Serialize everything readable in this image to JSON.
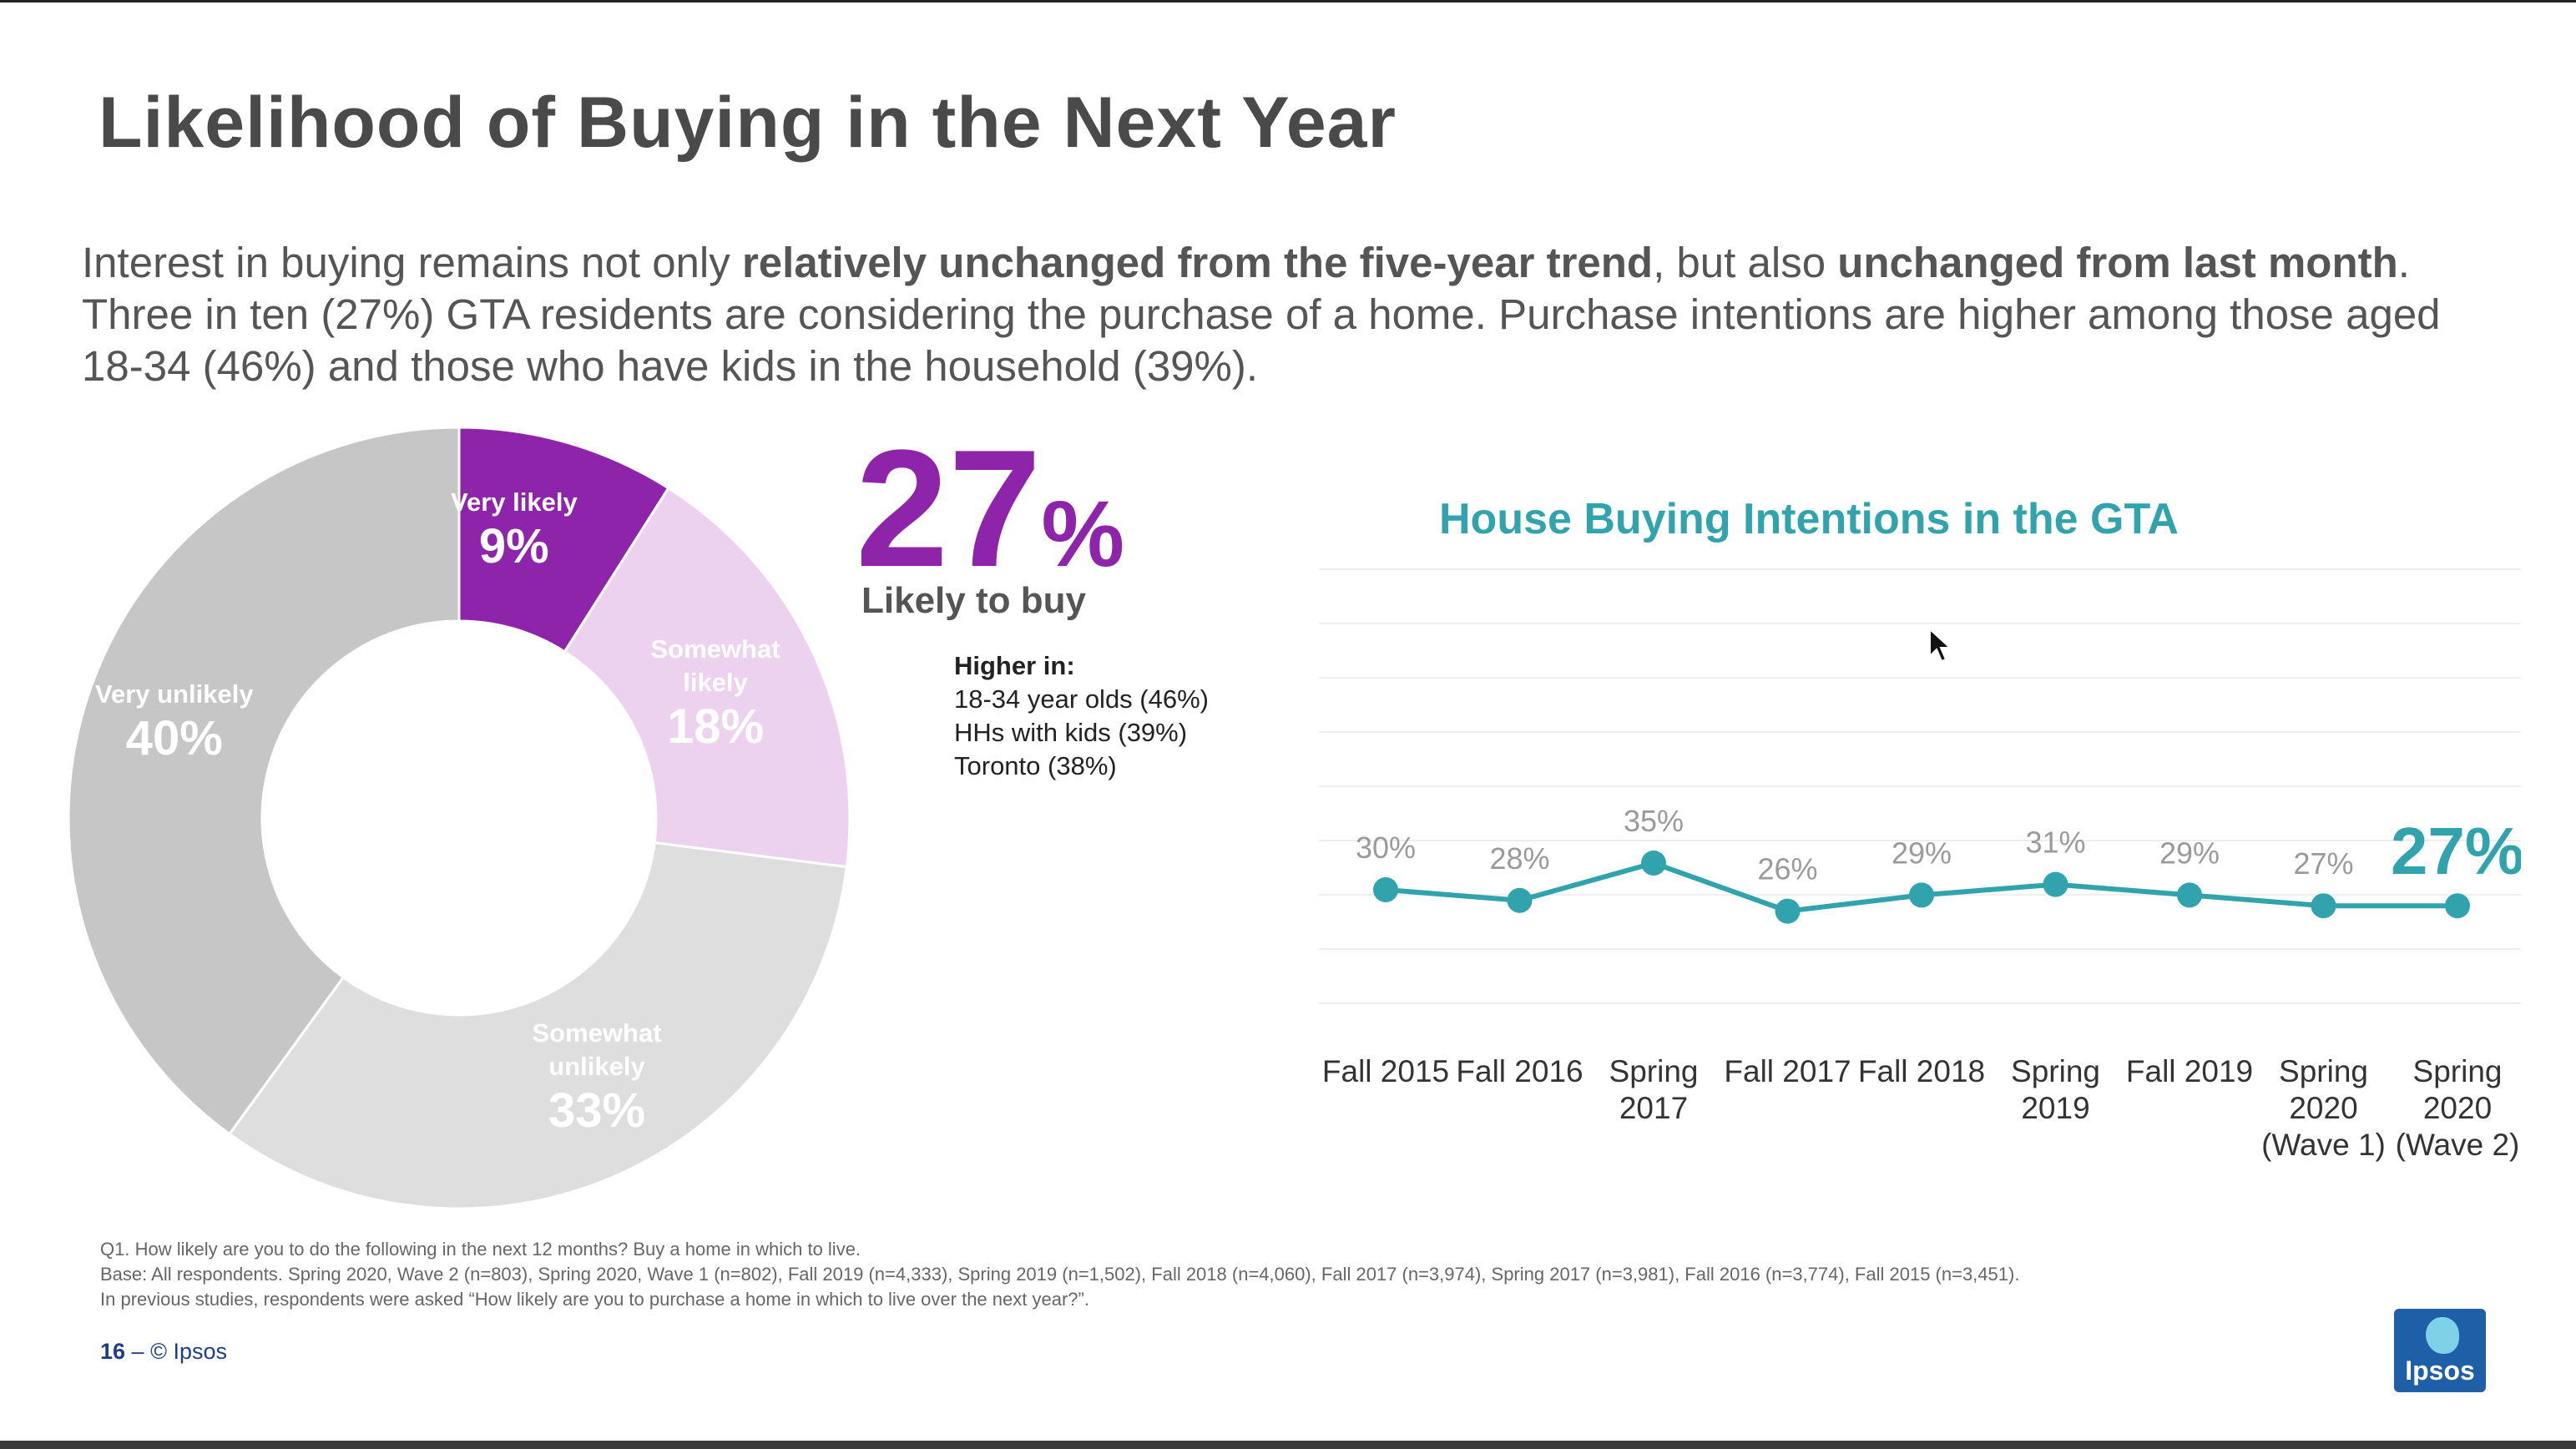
{
  "slide": {
    "title": "Likelihood of Buying in the Next Year",
    "intro": {
      "p1": "Interest in buying remains not only ",
      "b1": "relatively unchanged from the five-year trend",
      "p2": ", but also ",
      "b2": "unchanged from last month",
      "p3": ". Three in ten (27%) GTA residents are considering the purchase of a home. Purchase intentions are higher among those aged 18-34 (46%) and those who have kids in the household (39%)."
    },
    "callout": {
      "big_number": "27",
      "big_symbol": "%",
      "label": "Likely to buy",
      "higher_heading": "Higher in:",
      "higher_items": [
        "18-34 year olds (46%)",
        "HHs with kids (39%)",
        "Toronto (38%)"
      ]
    },
    "footnotes": {
      "q1": "Q1. How likely are you to do the following in the next 12 months?  Buy a home in which to live.",
      "base": "Base: All respondents. Spring 2020, Wave 2 (n=803), Spring 2020, Wave 1 (n=802), Fall 2019 (n=4,333), Spring 2019 (n=1,502), Fall 2018 (n=4,060), Fall 2017 (n=3,974), Spring 2017 (n=3,981), Fall 2016 (n=3,774), Fall 2015 (n=3,451).",
      "prev": "In previous studies, respondents were asked “How likely are you to purchase a home in which to live over the next year?”."
    },
    "page_number": "16",
    "page_sep": " – ",
    "copyright": "© Ipsos",
    "logo_text": "Ipsos"
  },
  "colors": {
    "title": "#4a4a4a",
    "accent_purple": "#8e24aa",
    "teal": "#31a3ad",
    "page_number": "#1f3c88"
  },
  "chart_data": [
    {
      "type": "pie",
      "donut": true,
      "slices": [
        {
          "label": "Very likely",
          "value": 9,
          "display": "9%",
          "color": "#8e24aa"
        },
        {
          "label": "Somewhat likely",
          "value": 18,
          "display": "18%",
          "color": "#ecd2ef"
        },
        {
          "label": "Somewhat unlikely",
          "value": 33,
          "display": "33%",
          "color": "#dedede"
        },
        {
          "label": "Very unlikely",
          "value": 40,
          "display": "40%",
          "color": "#c6c6c6"
        }
      ]
    },
    {
      "type": "line",
      "title": "House Buying Intentions in the GTA",
      "categories": [
        "Fall 2015",
        "Fall 2016",
        "Spring 2017",
        "Fall 2017",
        "Fall 2018",
        "Spring 2019",
        "Fall 2019",
        "Spring 2020 (Wave 1)",
        "Spring 2020 (Wave 2)"
      ],
      "category_lines": [
        [
          "Fall 2015"
        ],
        [
          "Fall 2016"
        ],
        [
          "Spring",
          "2017"
        ],
        [
          "Fall 2017"
        ],
        [
          "Fall 2018"
        ],
        [
          "Spring",
          "2019"
        ],
        [
          "Fall 2019"
        ],
        [
          "Spring",
          "2020",
          "(Wave 1)"
        ],
        [
          "Spring",
          "2020",
          "(Wave 2)"
        ]
      ],
      "values": [
        30,
        28,
        35,
        26,
        29,
        31,
        29,
        27,
        27
      ],
      "value_labels": [
        "30%",
        "28%",
        "35%",
        "26%",
        "29%",
        "31%",
        "29%",
        "27%",
        "27%"
      ],
      "ylim": [
        0,
        100
      ],
      "grid": true,
      "line_color": "#31a3ad"
    }
  ]
}
